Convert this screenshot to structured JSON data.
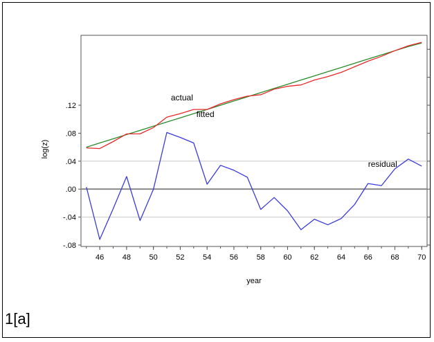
{
  "figure_label": "1[a]",
  "chart_data": {
    "type": "line",
    "xlabel": "year",
    "ylabel": "log(z)",
    "xlim": [
      44.6,
      70.4
    ],
    "ylim": [
      -0.082,
      0.22
    ],
    "x_ticks": [
      46,
      48,
      50,
      52,
      54,
      56,
      58,
      60,
      62,
      64,
      66,
      68,
      70
    ],
    "y_ticks": [
      -0.08,
      -0.04,
      0.0,
      0.04,
      0.08,
      0.12
    ],
    "y_tick_labels": [
      "-.08",
      "-.04",
      ".00",
      ".04",
      ".08",
      ".12"
    ],
    "reference_lines": [
      -0.04,
      0.0,
      0.04
    ],
    "grid": false,
    "right_axis_ticks": true,
    "x": [
      45,
      46,
      47,
      48,
      49,
      50,
      51,
      52,
      53,
      54,
      55,
      56,
      57,
      58,
      59,
      60,
      61,
      62,
      63,
      64,
      65,
      66,
      67,
      68,
      69,
      70
    ],
    "series": [
      {
        "name": "actual",
        "color": "#e8282a",
        "values": [
          0.059,
          0.058,
          0.068,
          0.079,
          0.079,
          0.088,
          0.103,
          0.108,
          0.114,
          0.114,
          0.122,
          0.128,
          0.133,
          0.135,
          0.143,
          0.147,
          0.149,
          0.156,
          0.161,
          0.167,
          0.175,
          0.183,
          0.19,
          0.198,
          0.205,
          0.21
        ]
      },
      {
        "name": "fitted",
        "color": "#2a8a2a",
        "values": [
          0.06,
          0.066,
          0.072,
          0.078,
          0.084,
          0.09,
          0.096,
          0.102,
          0.108,
          0.114,
          0.12,
          0.126,
          0.132,
          0.138,
          0.144,
          0.15,
          0.156,
          0.162,
          0.168,
          0.174,
          0.18,
          0.186,
          0.192,
          0.198,
          0.204,
          0.209
        ]
      },
      {
        "name": "residual",
        "color": "#3a3adc",
        "values": [
          0.003,
          -0.072,
          -0.028,
          0.018,
          -0.045,
          0.0,
          0.081,
          0.074,
          0.066,
          0.007,
          0.034,
          0.027,
          0.017,
          -0.029,
          -0.012,
          -0.031,
          -0.058,
          -0.043,
          -0.051,
          -0.042,
          -0.022,
          0.008,
          0.005,
          0.029,
          0.043,
          0.033
        ]
      }
    ],
    "annotations": [
      {
        "text": "actual",
        "x": 51.3,
        "y": 0.127
      },
      {
        "text": "fitted",
        "x": 53.2,
        "y": 0.103
      },
      {
        "text": "residual",
        "x": 66.0,
        "y": 0.032
      }
    ]
  }
}
